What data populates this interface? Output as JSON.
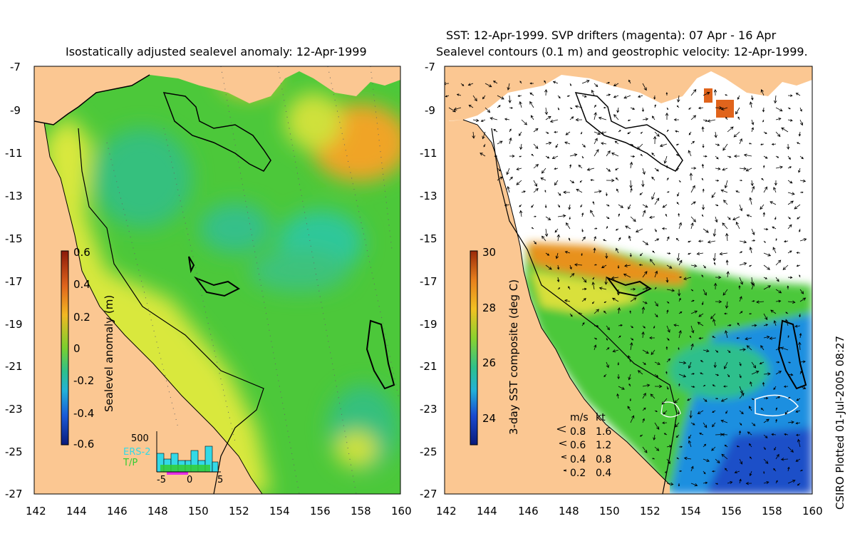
{
  "left_panel": {
    "title": "Isostatically adjusted sealevel anomaly: 12-Apr-1999",
    "colorbar": {
      "label": "Sealevel anomaly (m)",
      "ticks": [
        "0.6",
        "0.4",
        "0.2",
        "0",
        "-0.2",
        "-0.4",
        "-0.6"
      ]
    },
    "histogram": {
      "ymax_label": "500",
      "x_ticks": [
        "-5",
        "0",
        "5"
      ],
      "legend": [
        "ERS-2",
        "T/P"
      ],
      "legend_colors": [
        "#33d9e6",
        "#33cc33"
      ]
    }
  },
  "right_panel": {
    "title_line1": "SST: 12-Apr-1999. SVP drifters (magenta): 07 Apr - 16 Apr",
    "title_line2": "Sealevel contours (0.1 m) and geostrophic velocity: 12-Apr-1999.",
    "colorbar": {
      "label": "3-day SST composite (deg C)",
      "ticks": [
        "30",
        "28",
        "26",
        "24"
      ]
    },
    "speed_key": {
      "header_ms": "m/s",
      "header_kt": "kt",
      "rows": [
        {
          "ms": "0.8",
          "kt": "1.6"
        },
        {
          "ms": "0.6",
          "kt": "1.2"
        },
        {
          "ms": "0.4",
          "kt": "0.8"
        },
        {
          "ms": "0.2",
          "kt": "0.4"
        }
      ]
    }
  },
  "axes": {
    "lat_ticks": [
      "-7",
      "-9",
      "-11",
      "-13",
      "-15",
      "-17",
      "-19",
      "-21",
      "-23",
      "-25",
      "-27"
    ],
    "lon_ticks": [
      "142",
      "144",
      "146",
      "148",
      "150",
      "152",
      "154",
      "156",
      "158",
      "160"
    ],
    "lat_range": [
      -27,
      -7
    ],
    "lon_range": [
      142,
      160
    ]
  },
  "credit": "CSIRO Plotted 01-Jul-2005 08:27",
  "colors": {
    "land": "#fbc792",
    "sea_green": "#4cc83a",
    "sea_teal": "#2fc08a",
    "sea_yellow": "#d8e83a",
    "sea_orange": "#f2a21c",
    "sst_blue": "#1e6fdc"
  }
}
